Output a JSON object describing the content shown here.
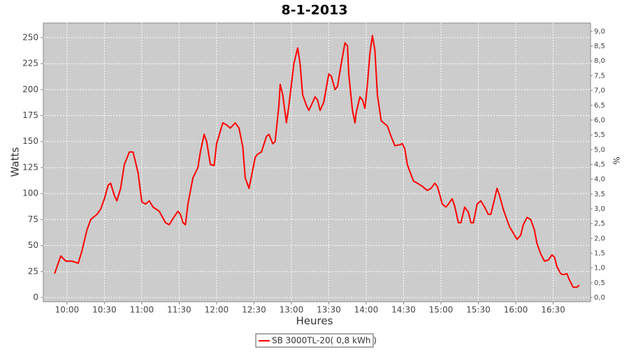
{
  "chart_data": {
    "type": "line",
    "title": "8-1-2013",
    "x_label": "Heures",
    "y_label": "Watts",
    "y2_label": "%",
    "x": [
      "09:50",
      "09:55",
      "09:59",
      "10:04",
      "10:09",
      "10:12",
      "10:16",
      "10:19",
      "10:24",
      "10:27",
      "10:30",
      "10:33",
      "10:35",
      "10:38",
      "10:40",
      "10:43",
      "10:46",
      "10:50",
      "10:53",
      "10:57",
      "11:00",
      "11:03",
      "11:06",
      "11:09",
      "11:14",
      "11:19",
      "11:22",
      "11:25",
      "11:29",
      "11:31",
      "11:33",
      "11:35",
      "11:37",
      "11:41",
      "11:45",
      "11:47",
      "11:50",
      "11:52",
      "11:55",
      "11:58",
      "12:00",
      "12:03",
      "12:05",
      "12:08",
      "12:11",
      "12:15",
      "12:18",
      "12:21",
      "12:23",
      "12:26",
      "12:28",
      "12:31",
      "12:33",
      "12:36",
      "12:40",
      "12:42",
      "12:45",
      "12:47",
      "12:50",
      "12:51",
      "12:53",
      "12:56",
      "12:58",
      "13:02",
      "13:05",
      "13:07",
      "13:09",
      "13:12",
      "13:14",
      "13:16",
      "13:19",
      "13:21",
      "13:23",
      "13:26",
      "13:30",
      "13:32",
      "13:35",
      "13:37",
      "13:40",
      "13:43",
      "13:45",
      "13:46",
      "13:49",
      "13:51",
      "13:52",
      "13:55",
      "13:57",
      "13:59",
      "14:01",
      "14:03",
      "14:05",
      "14:07",
      "14:09",
      "14:12",
      "14:14",
      "14:17",
      "14:20",
      "14:23",
      "14:27",
      "14:29",
      "14:31",
      "14:33",
      "14:36",
      "14:38",
      "14:41",
      "14:45",
      "14:49",
      "14:52",
      "14:55",
      "14:57",
      "14:59",
      "15:01",
      "15:04",
      "15:06",
      "15:09",
      "15:11",
      "15:14",
      "15:16",
      "15:19",
      "15:22",
      "15:24",
      "15:26",
      "15:29",
      "15:32",
      "15:35",
      "15:38",
      "15:40",
      "15:43",
      "15:45",
      "15:47",
      "15:50",
      "15:52",
      "15:55",
      "15:59",
      "16:01",
      "16:04",
      "16:06",
      "16:09",
      "16:12",
      "16:15",
      "16:17",
      "16:20",
      "16:23",
      "16:26",
      "16:29",
      "16:31",
      "16:33",
      "16:36",
      "16:38",
      "16:41",
      "16:43",
      "16:46",
      "16:49",
      "16:51"
    ],
    "series": [
      {
        "name": "SB 3000TL-20( 0,8 kWh )",
        "color": "#ff0000",
        "values": [
          23,
          40,
          35,
          35,
          33,
          45,
          65,
          75,
          80,
          85,
          95,
          108,
          110,
          98,
          93,
          105,
          128,
          140,
          140,
          120,
          92,
          90,
          93,
          87,
          83,
          72,
          70,
          76,
          83,
          80,
          72,
          70,
          90,
          115,
          125,
          140,
          157,
          150,
          128,
          127,
          148,
          160,
          168,
          166,
          163,
          168,
          163,
          145,
          115,
          105,
          117,
          135,
          138,
          140,
          155,
          157,
          148,
          150,
          185,
          205,
          195,
          168,
          185,
          225,
          240,
          225,
          195,
          185,
          180,
          185,
          193,
          190,
          180,
          188,
          215,
          213,
          200,
          203,
          225,
          245,
          242,
          215,
          180,
          168,
          178,
          193,
          190,
          182,
          205,
          235,
          252,
          238,
          195,
          170,
          168,
          165,
          155,
          146,
          147,
          148,
          143,
          128,
          118,
          112,
          110,
          107,
          103,
          105,
          110,
          107,
          99,
          90,
          87,
          90,
          95,
          88,
          72,
          72,
          87,
          82,
          72,
          72,
          90,
          93,
          87,
          80,
          80,
          95,
          105,
          98,
          85,
          78,
          68,
          60,
          56,
          60,
          70,
          77,
          75,
          65,
          52,
          42,
          35,
          36,
          41,
          39,
          30,
          23,
          22,
          23,
          17,
          10,
          10,
          12
        ]
      }
    ],
    "xlim": [
      "09:41",
      "17:00"
    ],
    "xticks": [
      "10:00",
      "10:30",
      "11:00",
      "11:30",
      "12:00",
      "12:30",
      "13:00",
      "13:30",
      "14:00",
      "14:30",
      "15:00",
      "15:30",
      "16:00",
      "16:30"
    ],
    "ylim": [
      -4,
      264
    ],
    "yticks": [
      0,
      25,
      50,
      75,
      100,
      125,
      150,
      175,
      200,
      225,
      250
    ],
    "y2lim": [
      -0.14,
      9.28
    ],
    "y2ticks": [
      {
        "value": 0,
        "label": "0,0"
      },
      {
        "value": 0.5,
        "label": "0,5"
      },
      {
        "value": 1,
        "label": "1,0"
      },
      {
        "value": 1.5,
        "label": "1,5"
      },
      {
        "value": 2,
        "label": "2,0"
      },
      {
        "value": 2.5,
        "label": "2,5"
      },
      {
        "value": 3,
        "label": "3,0"
      },
      {
        "value": 3.5,
        "label": "3,5"
      },
      {
        "value": 4,
        "label": "4,0"
      },
      {
        "value": 4.5,
        "label": "4,5"
      },
      {
        "value": 5,
        "label": "5,0"
      },
      {
        "value": 5.5,
        "label": "5,5"
      },
      {
        "value": 6,
        "label": "6,0"
      },
      {
        "value": 6.5,
        "label": "6,5"
      },
      {
        "value": 7,
        "label": "7,0"
      },
      {
        "value": 7.5,
        "label": "7,5"
      },
      {
        "value": 8,
        "label": "8,0"
      },
      {
        "value": 8.5,
        "label": "8,5"
      },
      {
        "value": 9,
        "label": "9,0"
      }
    ],
    "grid": true
  }
}
